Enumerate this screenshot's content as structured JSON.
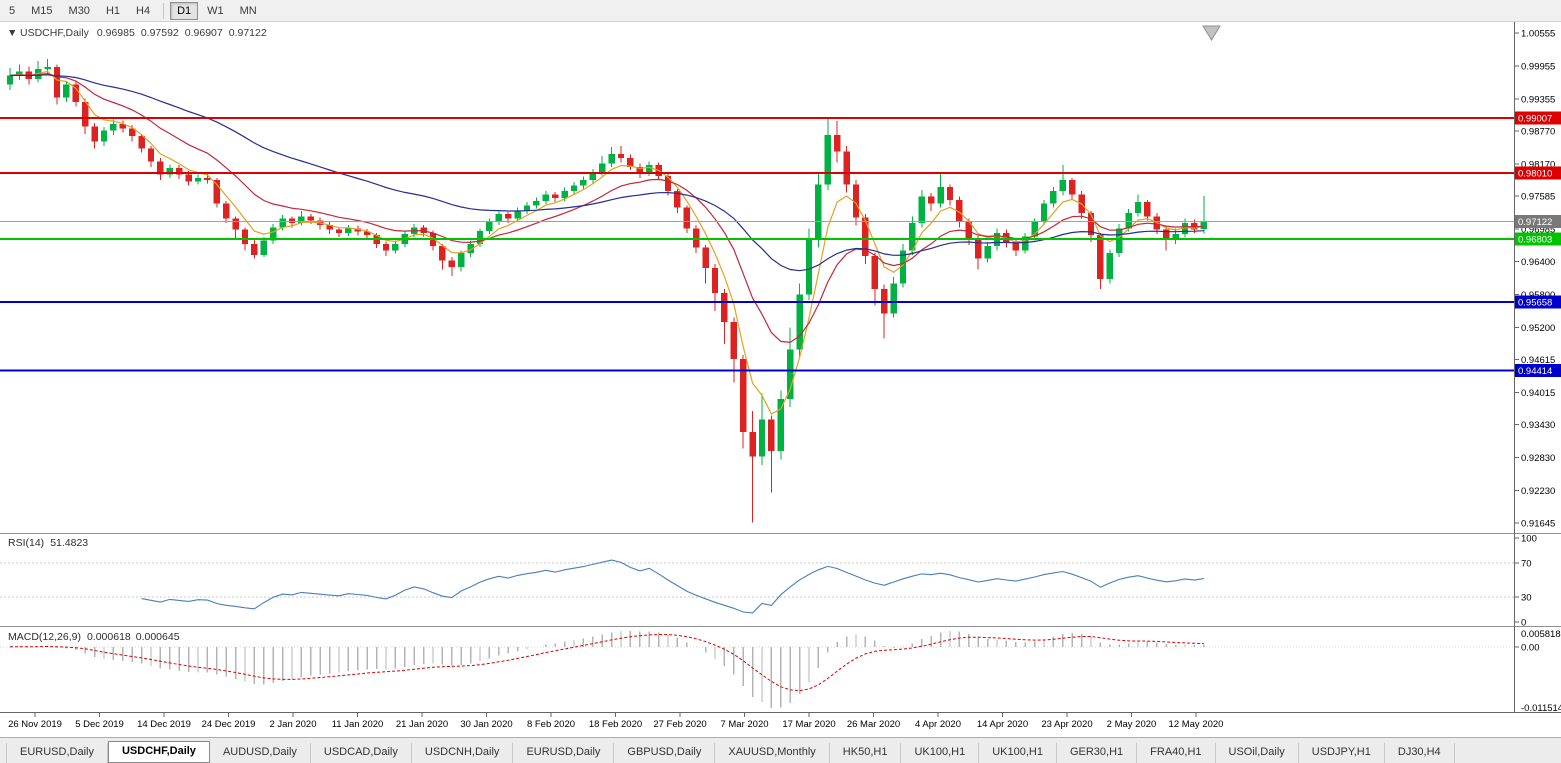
{
  "toolbar": {
    "timeframes": [
      {
        "label": "5",
        "active": false
      },
      {
        "label": "M15",
        "active": false
      },
      {
        "label": "M30",
        "active": false
      },
      {
        "label": "H1",
        "active": false
      },
      {
        "label": "H4",
        "active": false
      },
      {
        "label": "D1",
        "active": true,
        "divider_before": true
      },
      {
        "label": "W1",
        "active": false
      },
      {
        "label": "MN",
        "active": false
      }
    ]
  },
  "chart": {
    "title_symbol": "USDCHF,Daily",
    "ohlc": {
      "open": "0.96985",
      "high": "0.97592",
      "low": "0.96907",
      "close": "0.97122"
    }
  },
  "chart_data": {
    "type": "candlestick",
    "symbol": "USDCHF",
    "timeframe": "Daily",
    "ylim": [
      0.9146,
      1.0068
    ],
    "y_axis_ticks": [
      "1.00555",
      "0.99955",
      "0.99355",
      "0.98770",
      "0.98170",
      "0.97585",
      "0.96985",
      "0.96400",
      "0.95800",
      "0.95200",
      "0.94615",
      "0.94015",
      "0.93430",
      "0.92830",
      "0.92230",
      "0.91645"
    ],
    "x_labels": [
      "26 Nov 2019",
      "5 Dec 2019",
      "14 Dec 2019",
      "24 Dec 2019",
      "2 Jan 2020",
      "11 Jan 2020",
      "21 Jan 2020",
      "30 Jan 2020",
      "8 Feb 2020",
      "18 Feb 2020",
      "27 Feb 2020",
      "7 Mar 2020",
      "17 Mar 2020",
      "26 Mar 2020",
      "4 Apr 2020",
      "14 Apr 2020",
      "23 Apr 2020",
      "2 May 2020",
      "12 May 2020"
    ],
    "candle_colors": {
      "up": "#00b243",
      "down": "#dd2222"
    },
    "horizontal_lines": [
      {
        "price": 0.99007,
        "label": "0.99007",
        "color": "#dd0000",
        "width": 2
      },
      {
        "price": 0.9801,
        "label": "0.98010",
        "color": "#dd0000",
        "width": 2
      },
      {
        "price": 0.96803,
        "label": "0.96803",
        "color": "#00c400",
        "width": 2
      },
      {
        "price": 0.95658,
        "label": "0.95658",
        "color": "#0000cc",
        "width": 2
      },
      {
        "price": 0.94414,
        "label": "0.94414",
        "color": "#0000cc",
        "width": 2
      }
    ],
    "current_price": {
      "price": 0.97122,
      "label": "0.97122",
      "line_color": "#a0a0a0",
      "badge_color": "#787878"
    },
    "moving_averages": [
      {
        "period": 5,
        "color": "#dfa321"
      },
      {
        "period": 14,
        "color": "#c2273b"
      },
      {
        "period": 40,
        "color": "#252e92"
      }
    ],
    "indicators": {
      "rsi": {
        "title": "RSI(14)",
        "value_text": "51.4823",
        "period": 14,
        "color": "#4a7ebb",
        "levels": [
          70,
          30
        ],
        "axis": [
          "100",
          "70",
          "30",
          "0"
        ]
      },
      "macd": {
        "title": "MACD(12,26,9)",
        "value1": "0.000618",
        "value2": "0.000645",
        "fast": 12,
        "slow": 26,
        "signal": 9,
        "histogram_color": "#b4b4b4",
        "signal_color": "#dd0000",
        "axis_top": "0.005818",
        "axis_zero": "0.00",
        "axis_bottom": "-0.011514"
      }
    },
    "candles": [
      [
        0.9962,
        0.9992,
        0.9952,
        0.9978
      ],
      [
        0.9978,
        0.9998,
        0.997,
        0.9985
      ],
      [
        0.9985,
        0.9994,
        0.9962,
        0.9972
      ],
      [
        0.9972,
        1.0004,
        0.9965,
        0.999
      ],
      [
        0.999,
        1.0008,
        0.9982,
        0.9993
      ],
      [
        0.9993,
        0.9998,
        0.9925,
        0.9938
      ],
      [
        0.9938,
        0.9968,
        0.993,
        0.9962
      ],
      [
        0.9962,
        0.9968,
        0.9922,
        0.993
      ],
      [
        0.993,
        0.9936,
        0.9872,
        0.9885
      ],
      [
        0.9885,
        0.9892,
        0.9845,
        0.9858
      ],
      [
        0.9858,
        0.9884,
        0.985,
        0.9878
      ],
      [
        0.9878,
        0.9898,
        0.987,
        0.989
      ],
      [
        0.989,
        0.9896,
        0.9874,
        0.9882
      ],
      [
        0.9882,
        0.9888,
        0.9858,
        0.9868
      ],
      [
        0.9868,
        0.9872,
        0.9838,
        0.9845
      ],
      [
        0.9845,
        0.985,
        0.9812,
        0.9822
      ],
      [
        0.9822,
        0.9828,
        0.9788,
        0.9798
      ],
      [
        0.9798,
        0.9816,
        0.9792,
        0.981
      ],
      [
        0.981,
        0.9815,
        0.979,
        0.9798
      ],
      [
        0.9798,
        0.9804,
        0.9778,
        0.9785
      ],
      [
        0.9785,
        0.9798,
        0.978,
        0.9792
      ],
      [
        0.9792,
        0.98,
        0.9782,
        0.9788
      ],
      [
        0.9788,
        0.9792,
        0.9738,
        0.9745
      ],
      [
        0.9745,
        0.975,
        0.971,
        0.9718
      ],
      [
        0.9718,
        0.9722,
        0.968,
        0.9698
      ],
      [
        0.9698,
        0.9702,
        0.966,
        0.9672
      ],
      [
        0.9672,
        0.968,
        0.9645,
        0.9652
      ],
      [
        0.9652,
        0.9684,
        0.9648,
        0.9678
      ],
      [
        0.9678,
        0.9708,
        0.9672,
        0.9702
      ],
      [
        0.9702,
        0.9724,
        0.9696,
        0.9718
      ],
      [
        0.9718,
        0.9722,
        0.9702,
        0.971
      ],
      [
        0.971,
        0.9732,
        0.9705,
        0.9722
      ],
      [
        0.9722,
        0.9726,
        0.9708,
        0.9714
      ],
      [
        0.9714,
        0.972,
        0.9698,
        0.9706
      ],
      [
        0.9706,
        0.9712,
        0.969,
        0.9698
      ],
      [
        0.9698,
        0.9702,
        0.9684,
        0.9692
      ],
      [
        0.9692,
        0.9706,
        0.9686,
        0.97
      ],
      [
        0.97,
        0.9705,
        0.9687,
        0.9694
      ],
      [
        0.9694,
        0.9699,
        0.968,
        0.9688
      ],
      [
        0.9688,
        0.9692,
        0.9664,
        0.9672
      ],
      [
        0.9672,
        0.9676,
        0.965,
        0.966
      ],
      [
        0.966,
        0.9678,
        0.9654,
        0.9672
      ],
      [
        0.9672,
        0.9696,
        0.9666,
        0.969
      ],
      [
        0.969,
        0.9708,
        0.9684,
        0.9702
      ],
      [
        0.9702,
        0.9706,
        0.9685,
        0.9692
      ],
      [
        0.9692,
        0.9696,
        0.966,
        0.9668
      ],
      [
        0.9668,
        0.9672,
        0.9625,
        0.9642
      ],
      [
        0.9642,
        0.9648,
        0.9613,
        0.963
      ],
      [
        0.963,
        0.966,
        0.9622,
        0.9655
      ],
      [
        0.9655,
        0.9678,
        0.9648,
        0.9672
      ],
      [
        0.9672,
        0.97,
        0.9666,
        0.9695
      ],
      [
        0.9695,
        0.9718,
        0.969,
        0.9712
      ],
      [
        0.9712,
        0.9731,
        0.9706,
        0.9726
      ],
      [
        0.9726,
        0.973,
        0.971,
        0.9718
      ],
      [
        0.9718,
        0.9738,
        0.9712,
        0.9732
      ],
      [
        0.9732,
        0.9748,
        0.9726,
        0.9742
      ],
      [
        0.9742,
        0.9756,
        0.9736,
        0.975
      ],
      [
        0.975,
        0.9768,
        0.9744,
        0.9762
      ],
      [
        0.9762,
        0.9766,
        0.9748,
        0.9755
      ],
      [
        0.9755,
        0.9774,
        0.975,
        0.9768
      ],
      [
        0.9768,
        0.9784,
        0.9762,
        0.9778
      ],
      [
        0.9778,
        0.9794,
        0.9772,
        0.9788
      ],
      [
        0.9788,
        0.9808,
        0.9782,
        0.9802
      ],
      [
        0.9802,
        0.9832,
        0.9796,
        0.9818
      ],
      [
        0.9818,
        0.9848,
        0.9812,
        0.9835
      ],
      [
        0.9835,
        0.985,
        0.982,
        0.9828
      ],
      [
        0.9828,
        0.9834,
        0.9806,
        0.9812
      ],
      [
        0.9812,
        0.9818,
        0.9792,
        0.98
      ],
      [
        0.98,
        0.9822,
        0.9795,
        0.9815
      ],
      [
        0.9815,
        0.982,
        0.9788,
        0.9795
      ],
      [
        0.9795,
        0.98,
        0.976,
        0.9768
      ],
      [
        0.9768,
        0.9772,
        0.9728,
        0.9738
      ],
      [
        0.9738,
        0.9742,
        0.9692,
        0.97
      ],
      [
        0.97,
        0.9706,
        0.9655,
        0.9665
      ],
      [
        0.9665,
        0.967,
        0.96,
        0.9628
      ],
      [
        0.9628,
        0.9635,
        0.955,
        0.9582
      ],
      [
        0.9582,
        0.959,
        0.949,
        0.953
      ],
      [
        0.953,
        0.9538,
        0.942,
        0.9462
      ],
      [
        0.9462,
        0.947,
        0.93,
        0.933
      ],
      [
        0.933,
        0.9368,
        0.9165,
        0.9285
      ],
      [
        0.9285,
        0.94,
        0.927,
        0.9352
      ],
      [
        0.9352,
        0.936,
        0.922,
        0.9295
      ],
      [
        0.9295,
        0.9405,
        0.928,
        0.939
      ],
      [
        0.939,
        0.952,
        0.9375,
        0.948
      ],
      [
        0.948,
        0.96,
        0.9465,
        0.958
      ],
      [
        0.958,
        0.97,
        0.957,
        0.968
      ],
      [
        0.968,
        0.98,
        0.9665,
        0.978
      ],
      [
        0.978,
        0.9901,
        0.977,
        0.987
      ],
      [
        0.987,
        0.9895,
        0.982,
        0.984
      ],
      [
        0.984,
        0.985,
        0.9765,
        0.978
      ],
      [
        0.978,
        0.9788,
        0.9705,
        0.972
      ],
      [
        0.972,
        0.9726,
        0.9635,
        0.965
      ],
      [
        0.965,
        0.9656,
        0.956,
        0.959
      ],
      [
        0.959,
        0.9598,
        0.95,
        0.9545
      ],
      [
        0.9545,
        0.9612,
        0.9538,
        0.96
      ],
      [
        0.96,
        0.9672,
        0.9592,
        0.966
      ],
      [
        0.966,
        0.9722,
        0.9652,
        0.971
      ],
      [
        0.971,
        0.977,
        0.9702,
        0.9758
      ],
      [
        0.9758,
        0.9764,
        0.9732,
        0.9745
      ],
      [
        0.9745,
        0.98,
        0.9738,
        0.9775
      ],
      [
        0.9775,
        0.978,
        0.9742,
        0.9752
      ],
      [
        0.9752,
        0.9758,
        0.9702,
        0.9712
      ],
      [
        0.9712,
        0.9718,
        0.967,
        0.968
      ],
      [
        0.968,
        0.9686,
        0.9625,
        0.9645
      ],
      [
        0.9645,
        0.9675,
        0.9638,
        0.9668
      ],
      [
        0.9668,
        0.97,
        0.966,
        0.9692
      ],
      [
        0.9692,
        0.9698,
        0.9665,
        0.9675
      ],
      [
        0.9675,
        0.9682,
        0.965,
        0.966
      ],
      [
        0.966,
        0.9692,
        0.9654,
        0.9685
      ],
      [
        0.9685,
        0.9718,
        0.9678,
        0.9712
      ],
      [
        0.9712,
        0.9752,
        0.9706,
        0.9745
      ],
      [
        0.9745,
        0.9775,
        0.9738,
        0.9768
      ],
      [
        0.9768,
        0.9815,
        0.976,
        0.9788
      ],
      [
        0.9788,
        0.9792,
        0.9752,
        0.9762
      ],
      [
        0.9762,
        0.9768,
        0.9718,
        0.9728
      ],
      [
        0.9728,
        0.9732,
        0.9675,
        0.9688
      ],
      [
        0.9688,
        0.9692,
        0.959,
        0.9608
      ],
      [
        0.9608,
        0.9662,
        0.96,
        0.9655
      ],
      [
        0.9655,
        0.9708,
        0.9648,
        0.97
      ],
      [
        0.97,
        0.9735,
        0.9694,
        0.9728
      ],
      [
        0.9728,
        0.9762,
        0.9722,
        0.9748
      ],
      [
        0.9748,
        0.9752,
        0.9714,
        0.9722
      ],
      [
        0.9722,
        0.9728,
        0.969,
        0.9698
      ],
      [
        0.9698,
        0.9704,
        0.966,
        0.968
      ],
      [
        0.968,
        0.97,
        0.9672,
        0.969
      ],
      [
        0.969,
        0.9718,
        0.9684,
        0.971
      ],
      [
        0.971,
        0.9716,
        0.9692,
        0.9698
      ],
      [
        0.96985,
        0.97592,
        0.96907,
        0.97122
      ]
    ]
  },
  "tabs": [
    {
      "label": "EURUSD,Daily",
      "active": false
    },
    {
      "label": "USDCHF,Daily",
      "active": true
    },
    {
      "label": "AUDUSD,Daily",
      "active": false
    },
    {
      "label": "USDCAD,Daily",
      "active": false
    },
    {
      "label": "USDCNH,Daily",
      "active": false
    },
    {
      "label": "EURUSD,Daily",
      "active": false
    },
    {
      "label": "GBPUSD,Daily",
      "active": false
    },
    {
      "label": "XAUUSD,Monthly",
      "active": false
    },
    {
      "label": "HK50,H1",
      "active": false
    },
    {
      "label": "UK100,H1",
      "active": false
    },
    {
      "label": "UK100,H1",
      "active": false
    },
    {
      "label": "GER30,H1",
      "active": false
    },
    {
      "label": "FRA40,H1",
      "active": false
    },
    {
      "label": "USOil,Daily",
      "active": false
    },
    {
      "label": "USDJPY,H1",
      "active": false
    },
    {
      "label": "DJ30,H4",
      "active": false
    }
  ]
}
